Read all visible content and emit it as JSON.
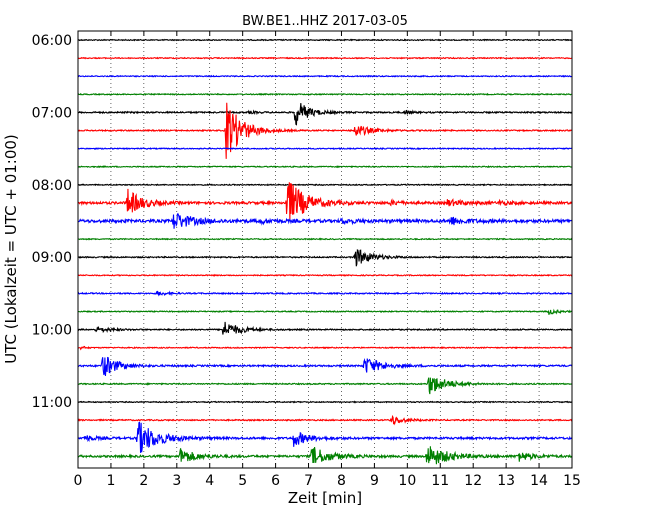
{
  "chart_data": {
    "type": "line",
    "title": "BW.BE1..HHZ 2017-03-05",
    "xlabel": "Zeit  [min]",
    "ylabel": "UTC (Lokalzeit = UTC + 01:00)",
    "xlim": [
      0,
      15
    ],
    "x_ticks": [
      "0",
      "1",
      "2",
      "3",
      "4",
      "5",
      "6",
      "7",
      "8",
      "9",
      "10",
      "11",
      "12",
      "13",
      "14",
      "15"
    ],
    "y_ticks": [
      "06:00",
      "07:00",
      "08:00",
      "09:00",
      "10:00",
      "11:00"
    ],
    "row_minutes": 15,
    "rows_per_hour": 4,
    "grid": true,
    "colors": [
      "#000000",
      "#ff0000",
      "#0000ff",
      "#008000"
    ],
    "rows": [
      {
        "label": "06:00",
        "noise": 0.5,
        "events": []
      },
      {
        "label": "06:15",
        "noise": 0.5,
        "events": []
      },
      {
        "label": "06:30",
        "noise": 0.5,
        "events": []
      },
      {
        "label": "06:45",
        "noise": 0.5,
        "events": []
      },
      {
        "label": "07:00",
        "noise": 0.7,
        "events": [
          {
            "t": 6.6,
            "amp": 14,
            "dur": 0.35
          },
          {
            "t": 9.95,
            "amp": 2.5,
            "dur": 0.15
          },
          {
            "t": 5.2,
            "amp": 1.2,
            "dur": 0.2
          }
        ]
      },
      {
        "label": "07:15",
        "noise": 0.6,
        "events": [
          {
            "t": 4.5,
            "amp": 30,
            "dur": 0.45
          },
          {
            "t": 8.4,
            "amp": 7,
            "dur": 0.4
          }
        ]
      },
      {
        "label": "07:30",
        "noise": 0.5,
        "events": []
      },
      {
        "label": "07:45",
        "noise": 0.5,
        "events": []
      },
      {
        "label": "08:00",
        "noise": 0.5,
        "events": []
      },
      {
        "label": "08:15",
        "noise": 1.2,
        "events": [
          {
            "t": 1.5,
            "amp": 14,
            "dur": 0.4
          },
          {
            "t": 6.35,
            "amp": 25,
            "dur": 0.5
          },
          {
            "t": 9.5,
            "amp": 2,
            "dur": 0.3
          },
          {
            "t": 11.2,
            "amp": 3,
            "dur": 0.5
          },
          {
            "t": 12.8,
            "amp": 2,
            "dur": 0.3
          }
        ]
      },
      {
        "label": "08:30",
        "noise": 1.5,
        "events": [
          {
            "t": 2.9,
            "amp": 9,
            "dur": 0.5
          },
          {
            "t": 11.3,
            "amp": 4,
            "dur": 0.4
          },
          {
            "t": 5.5,
            "amp": 2,
            "dur": 0.4
          },
          {
            "t": 8.0,
            "amp": 2,
            "dur": 0.4
          }
        ]
      },
      {
        "label": "08:45",
        "noise": 0.5,
        "events": []
      },
      {
        "label": "09:00",
        "noise": 0.6,
        "events": [
          {
            "t": 8.4,
            "amp": 10,
            "dur": 0.45
          }
        ]
      },
      {
        "label": "09:15",
        "noise": 0.5,
        "events": []
      },
      {
        "label": "09:30",
        "noise": 0.6,
        "events": [
          {
            "t": 2.4,
            "amp": 2,
            "dur": 0.3
          }
        ]
      },
      {
        "label": "09:45",
        "noise": 0.5,
        "events": [
          {
            "t": 14.3,
            "amp": 3,
            "dur": 0.25
          }
        ]
      },
      {
        "label": "10:00",
        "noise": 0.6,
        "events": [
          {
            "t": 0.55,
            "amp": 3,
            "dur": 0.4
          },
          {
            "t": 4.4,
            "amp": 9,
            "dur": 0.45
          }
        ]
      },
      {
        "label": "10:15",
        "noise": 0.5,
        "events": [
          {
            "t": 0.1,
            "amp": 2,
            "dur": 0.1
          }
        ]
      },
      {
        "label": "10:30",
        "noise": 0.8,
        "events": [
          {
            "t": 0.75,
            "amp": 12,
            "dur": 0.4
          },
          {
            "t": 8.7,
            "amp": 9,
            "dur": 0.5
          }
        ]
      },
      {
        "label": "10:45",
        "noise": 0.6,
        "events": [
          {
            "t": 10.65,
            "amp": 11,
            "dur": 0.5
          }
        ]
      },
      {
        "label": "11:00",
        "noise": 0.5,
        "events": []
      },
      {
        "label": "11:15",
        "noise": 0.6,
        "events": [
          {
            "t": 9.5,
            "amp": 5,
            "dur": 0.35
          }
        ]
      },
      {
        "label": "11:30",
        "noise": 1.0,
        "events": [
          {
            "t": 0.2,
            "amp": 3,
            "dur": 0.3
          },
          {
            "t": 1.8,
            "amp": 18,
            "dur": 0.55
          },
          {
            "t": 6.55,
            "amp": 8,
            "dur": 0.4
          }
        ]
      },
      {
        "label": "11:45",
        "noise": 1.0,
        "events": [
          {
            "t": 3.1,
            "amp": 8,
            "dur": 0.45
          },
          {
            "t": 7.1,
            "amp": 10,
            "dur": 0.5
          },
          {
            "t": 10.6,
            "amp": 12,
            "dur": 0.55
          },
          {
            "t": 13.35,
            "amp": 5,
            "dur": 0.4
          }
        ]
      }
    ]
  }
}
